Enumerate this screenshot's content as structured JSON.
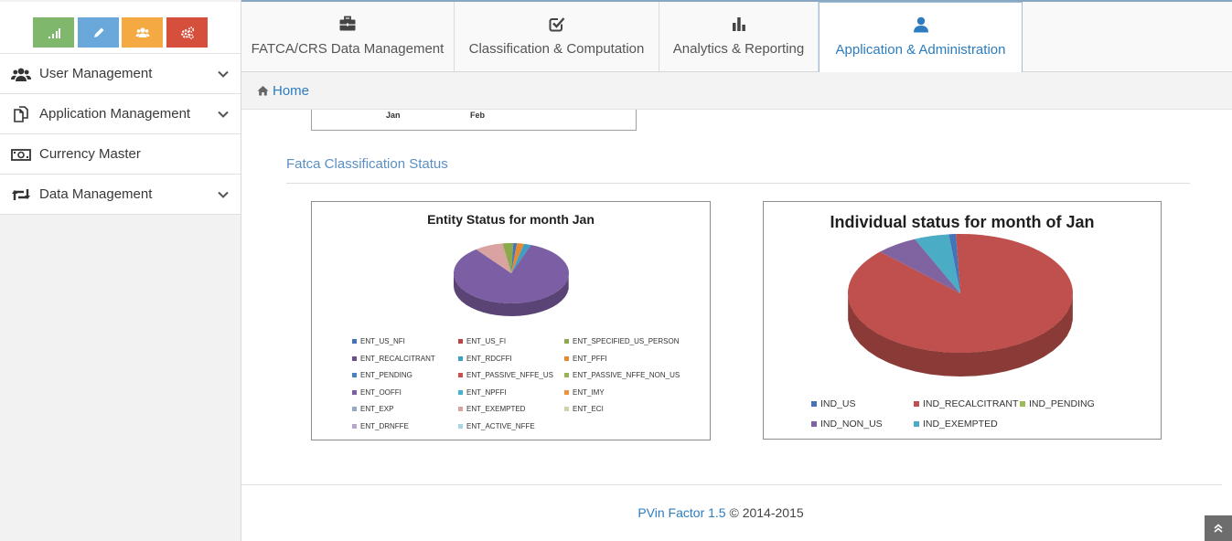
{
  "colors": {
    "accent": "#2c7cbf",
    "green": "#7fb86d",
    "blue": "#6aa8dc",
    "orange": "#f5a942",
    "red": "#d64f3d"
  },
  "shortcuts": [
    {
      "icon": "signal-icon",
      "color": "#7fb86d"
    },
    {
      "icon": "pencil-icon",
      "color": "#6aa8dc"
    },
    {
      "icon": "users-icon",
      "color": "#f5a942"
    },
    {
      "icon": "cogs-icon",
      "color": "#d64f3d"
    }
  ],
  "sidebar": {
    "items": [
      {
        "label": "User Management",
        "icon": "users-icon",
        "has_children": true
      },
      {
        "label": "Application Management",
        "icon": "files-icon",
        "has_children": true
      },
      {
        "label": "Currency Master",
        "icon": "money-icon",
        "has_children": false
      },
      {
        "label": "Data Management",
        "icon": "retweet-icon",
        "has_children": true
      }
    ]
  },
  "tabs": [
    {
      "label": "FATCA/CRS Data Management",
      "icon": "briefcase-icon"
    },
    {
      "label": "Classification & Computation",
      "icon": "check-square-icon"
    },
    {
      "label": "Analytics & Reporting",
      "icon": "bar-chart-icon"
    },
    {
      "label": "Application & Administration",
      "icon": "user-icon",
      "active": true
    }
  ],
  "breadcrumb": {
    "home": "Home",
    "icon": "home-icon"
  },
  "prev_chart": {
    "labels": [
      "Jan",
      "Feb"
    ]
  },
  "section": {
    "title": "Fatca Classification Status"
  },
  "chart_data": [
    {
      "type": "pie",
      "title": "Entity Status for month Jan",
      "legend": [
        {
          "name": "ENT_US_NFI",
          "color": "#4473b8"
        },
        {
          "name": "ENT_US_FI",
          "color": "#b84644"
        },
        {
          "name": "ENT_SPECIFIED_US_PERSON",
          "color": "#8caa4c"
        },
        {
          "name": "ENT_RECALCITRANT",
          "color": "#6a4e8e"
        },
        {
          "name": "ENT_RDCFFI",
          "color": "#3f9fc2"
        },
        {
          "name": "ENT_PFFI",
          "color": "#e48a34"
        },
        {
          "name": "ENT_PENDING",
          "color": "#4a82c0"
        },
        {
          "name": "ENT_PASSIVE_NFFE_US",
          "color": "#c9504b"
        },
        {
          "name": "ENT_PASSIVE_NFFE_NON_US",
          "color": "#96b454"
        },
        {
          "name": "ENT_OOFFI",
          "color": "#7b5ea3"
        },
        {
          "name": "ENT_NPFFI",
          "color": "#47b3cc"
        },
        {
          "name": "ENT_IMY",
          "color": "#ee923d"
        },
        {
          "name": "ENT_EXP",
          "color": "#94aac8"
        },
        {
          "name": "ENT_EXEMPTED",
          "color": "#d9a3a1"
        },
        {
          "name": "ENT_ECI",
          "color": "#c8d7a8"
        },
        {
          "name": "ENT_DRNFFE",
          "color": "#b6a6cb"
        },
        {
          "name": "ENT_ACTIVE_NFFE",
          "color": "#a8d6e4"
        }
      ],
      "slices": [
        {
          "name": "ENT_OOFFI",
          "value": 84
        },
        {
          "name": "ENT_EXEMPTED",
          "value": 8
        },
        {
          "name": "ENT_SPECIFIED_US_PERSON",
          "value": 3
        },
        {
          "name": "ENT_US_NFI",
          "value": 1
        },
        {
          "name": "ENT_PFFI",
          "value": 2
        },
        {
          "name": "ENT_RDCFFI",
          "value": 2
        }
      ]
    },
    {
      "type": "pie",
      "title": "Individual status for month of Jan",
      "legend": [
        {
          "name": "IND_US",
          "color": "#4473b8"
        },
        {
          "name": "IND_RECALCITRANT",
          "color": "#c0504d"
        },
        {
          "name": "IND_PENDING",
          "color": "#9bbb59"
        },
        {
          "name": "IND_NON_US",
          "color": "#8064a2"
        },
        {
          "name": "IND_EXEMPTED",
          "color": "#4bacc6"
        }
      ],
      "slices": [
        {
          "name": "IND_RECALCITRANT",
          "value": 88
        },
        {
          "name": "IND_NON_US",
          "value": 6
        },
        {
          "name": "IND_EXEMPTED",
          "value": 5
        },
        {
          "name": "IND_US",
          "value": 1
        }
      ]
    }
  ],
  "footer": {
    "brand": "PVin Factor 1.5",
    "copyright": " © 2014-2015"
  }
}
